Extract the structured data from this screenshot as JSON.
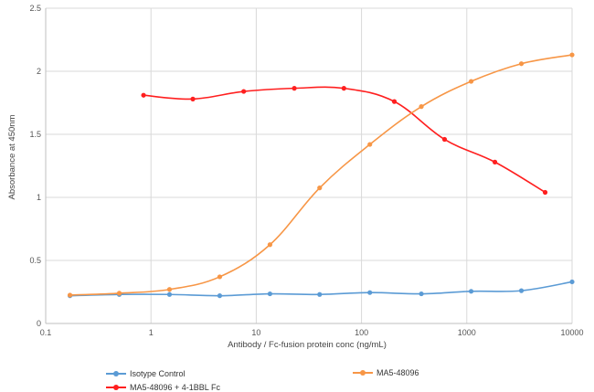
{
  "chart_data": {
    "type": "line",
    "x_scale": "log",
    "xlabel": "Antibody / Fc-fusion protein conc  (ng/mL)",
    "ylabel": "Absorbance at 450nm",
    "xlim": [
      0.1,
      10000
    ],
    "ylim": [
      0,
      2.5
    ],
    "x_ticks": [
      0.1,
      1,
      10,
      100,
      1000,
      10000
    ],
    "x_tick_labels": [
      "0.1",
      "1",
      "10",
      "100",
      "1000",
      "10000"
    ],
    "y_ticks": [
      0,
      0.5,
      1,
      1.5,
      2,
      2.5
    ],
    "y_tick_labels": [
      "0",
      "0.5",
      "1",
      "1.5",
      "2",
      "2.5"
    ],
    "grid": true,
    "legend_position": "bottom",
    "series": [
      {
        "name": "Isotype Control",
        "color": "#5b9bd5",
        "x": [
          0.17,
          0.5,
          1.5,
          4.5,
          13.5,
          40,
          120,
          370,
          1100,
          3300,
          10000
        ],
        "y": [
          0.22,
          0.23,
          0.23,
          0.22,
          0.235,
          0.23,
          0.245,
          0.235,
          0.255,
          0.26,
          0.33
        ]
      },
      {
        "name": "MA5-48096 + 4-1BBL Fc",
        "color": "#ff1f1f",
        "x": [
          0.85,
          2.5,
          7.6,
          23,
          68,
          205,
          615,
          1850,
          5550
        ],
        "y": [
          1.81,
          1.78,
          1.84,
          1.865,
          1.865,
          1.76,
          1.46,
          1.28,
          1.04
        ]
      },
      {
        "name": "MA5-48096",
        "color": "#f79646",
        "x": [
          0.17,
          0.5,
          1.5,
          4.5,
          13.5,
          40,
          120,
          370,
          1100,
          3300,
          10000
        ],
        "y": [
          0.225,
          0.24,
          0.27,
          0.37,
          0.625,
          1.075,
          1.42,
          1.72,
          1.92,
          2.06,
          2.13
        ]
      }
    ]
  }
}
